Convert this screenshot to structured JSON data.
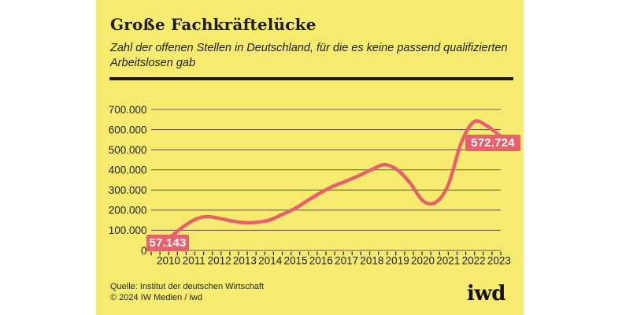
{
  "chart_data": {
    "type": "line",
    "title": "Große Fachkräftelücke",
    "subtitle_lines": [
      "Zahl der offenen Stellen in Deutschland, für die es keine passend qualifizierten",
      "Arbeitslosen gab"
    ],
    "x": [
      2010,
      2010.5,
      2011,
      2011.5,
      2012,
      2012.5,
      2013,
      2013.5,
      2014,
      2014.5,
      2015,
      2015.5,
      2016,
      2016.5,
      2017,
      2017.5,
      2018,
      2018.5,
      2019,
      2019.5,
      2020,
      2020.5,
      2021,
      2021.5,
      2022,
      2022.5,
      2023
    ],
    "values": [
      57143,
      110000,
      151000,
      168000,
      159000,
      146000,
      138000,
      140000,
      152000,
      180000,
      210000,
      250000,
      288000,
      320000,
      345000,
      372000,
      402000,
      426000,
      400000,
      335000,
      247000,
      238000,
      325000,
      530000,
      638000,
      620000,
      572724
    ],
    "xlabels": [
      "2010",
      "2011",
      "2012",
      "2013",
      "2014",
      "2015",
      "2016",
      "2017",
      "2018",
      "2019",
      "2020",
      "2021",
      "2022",
      "2023"
    ],
    "yticks": [
      0,
      100000,
      200000,
      300000,
      400000,
      500000,
      600000,
      700000
    ],
    "ytick_labels": [
      "0",
      "100.000",
      "200.000",
      "300.000",
      "400.000",
      "500.000",
      "600.000",
      "700.000"
    ],
    "ylim": [
      0,
      700000
    ],
    "grid": "horizontal",
    "legend": "none",
    "annotations": [
      {
        "x": 2010,
        "value": 57143,
        "label": "57.143"
      },
      {
        "x": 2023,
        "value": 572724,
        "label": "572.724"
      }
    ]
  },
  "colors": {
    "accent": "#e7606c",
    "card_background": "#f7eb6f",
    "heading_text": "#1e1d19",
    "grid_line": "#65654b",
    "axis_text": "#23221e"
  },
  "footer": {
    "source_line1": "Quelle: Institut der deutschen Wirtschaft",
    "source_line2": "© 2024 IW Medien / iwd",
    "logo_text": "iwd"
  }
}
